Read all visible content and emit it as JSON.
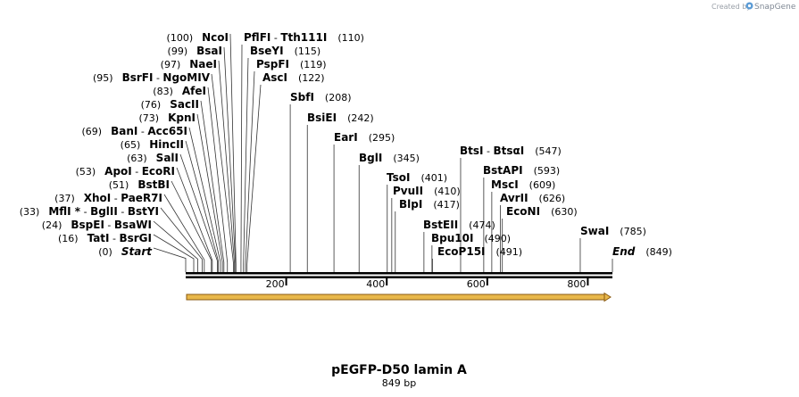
{
  "branding": {
    "created_by": "Created by",
    "app_name": "SnapGene",
    "logo_icon": "snapgene-logo-icon"
  },
  "map": {
    "title": "pEGFP-D50 lamin A",
    "length_label": "849 bp",
    "length_bp": 849,
    "feature_color": "#e8b74a",
    "feature_outline": "#8a5a10",
    "ticks": [
      {
        "bp": 200,
        "label": "200"
      },
      {
        "bp": 400,
        "label": "400"
      },
      {
        "bp": 600,
        "label": "600"
      },
      {
        "bp": 800,
        "label": "800"
      }
    ],
    "sites": [
      {
        "pos_text": "(0)",
        "bp": 0,
        "label_bp": 0,
        "names": [
          "Start"
        ],
        "italic": true,
        "side": "left"
      },
      {
        "pos_text": "(16)",
        "bp": 16,
        "names": [
          "TatI",
          "BsrGI"
        ],
        "side": "left"
      },
      {
        "pos_text": "(24)",
        "bp": 24,
        "names": [
          "BspEI",
          "BsaWI"
        ],
        "side": "left"
      },
      {
        "pos_text": "(33)",
        "bp": 33,
        "names": [
          "MflI *",
          "BglII",
          "BstYI"
        ],
        "side": "left"
      },
      {
        "pos_text": "(37)",
        "bp": 37,
        "names": [
          "XhoI",
          "PaeR7I"
        ],
        "side": "left"
      },
      {
        "pos_text": "(51)",
        "bp": 51,
        "names": [
          "BstBI"
        ],
        "side": "left"
      },
      {
        "pos_text": "(53)",
        "bp": 53,
        "names": [
          "ApoI",
          "EcoRI"
        ],
        "side": "left"
      },
      {
        "pos_text": "(63)",
        "bp": 63,
        "names": [
          "SalI"
        ],
        "side": "left"
      },
      {
        "pos_text": "(65)",
        "bp": 65,
        "names": [
          "HincII"
        ],
        "side": "left"
      },
      {
        "pos_text": "(69)",
        "bp": 69,
        "names": [
          "BanI",
          "Acc65I"
        ],
        "side": "left"
      },
      {
        "pos_text": "(73)",
        "bp": 73,
        "names": [
          "KpnI"
        ],
        "side": "left"
      },
      {
        "pos_text": "(76)",
        "bp": 76,
        "names": [
          "SacII"
        ],
        "side": "left"
      },
      {
        "pos_text": "(83)",
        "bp": 83,
        "names": [
          "AfeI"
        ],
        "side": "left"
      },
      {
        "pos_text": "(95)",
        "bp": 95,
        "names": [
          "BsrFI",
          "NgoMIV"
        ],
        "side": "left"
      },
      {
        "pos_text": "(97)",
        "bp": 97,
        "names": [
          "NaeI"
        ],
        "side": "left"
      },
      {
        "pos_text": "(99)",
        "bp": 99,
        "names": [
          "BsaI"
        ],
        "side": "left"
      },
      {
        "pos_text": "(100)",
        "bp": 100,
        "names": [
          "NcoI"
        ],
        "side": "left"
      },
      {
        "pos_text": "(110)",
        "bp": 110,
        "names": [
          "PflFI",
          "Tth111I"
        ],
        "side": "right"
      },
      {
        "pos_text": "(115)",
        "bp": 115,
        "names": [
          "BseYI"
        ],
        "side": "right"
      },
      {
        "pos_text": "(119)",
        "bp": 119,
        "names": [
          "PspFI"
        ],
        "side": "right"
      },
      {
        "pos_text": "(122)",
        "bp": 122,
        "names": [
          "AscI"
        ],
        "side": "right"
      },
      {
        "pos_text": "(208)",
        "bp": 208,
        "names": [
          "SbfI"
        ],
        "side": "right"
      },
      {
        "pos_text": "(242)",
        "bp": 242,
        "names": [
          "BsiEI"
        ],
        "side": "right"
      },
      {
        "pos_text": "(295)",
        "bp": 295,
        "names": [
          "EarI"
        ],
        "side": "right"
      },
      {
        "pos_text": "(345)",
        "bp": 345,
        "names": [
          "BglI"
        ],
        "side": "right"
      },
      {
        "pos_text": "(401)",
        "bp": 401,
        "names": [
          "TsoI"
        ],
        "side": "right"
      },
      {
        "pos_text": "(410)",
        "bp": 410,
        "names": [
          "PvuII"
        ],
        "side": "right"
      },
      {
        "pos_text": "(417)",
        "bp": 417,
        "names": [
          "BlpI"
        ],
        "side": "right"
      },
      {
        "pos_text": "(474)",
        "bp": 474,
        "names": [
          "BstEII"
        ],
        "side": "right"
      },
      {
        "pos_text": "(490)",
        "bp": 490,
        "names": [
          "Bpu10I"
        ],
        "side": "right"
      },
      {
        "pos_text": "(491)",
        "bp": 491,
        "names": [
          "EcoP15I"
        ],
        "side": "right"
      },
      {
        "pos_text": "(547)",
        "bp": 547,
        "names": [
          "BtsI",
          "BtsαI"
        ],
        "side": "right"
      },
      {
        "pos_text": "(593)",
        "bp": 593,
        "names": [
          "BstAPI"
        ],
        "side": "right"
      },
      {
        "pos_text": "(609)",
        "bp": 609,
        "names": [
          "MscI"
        ],
        "side": "right"
      },
      {
        "pos_text": "(626)",
        "bp": 626,
        "names": [
          "AvrII"
        ],
        "side": "right"
      },
      {
        "pos_text": "(630)",
        "bp": 630,
        "names": [
          "EcoNI"
        ],
        "side": "right"
      },
      {
        "pos_text": "(785)",
        "bp": 785,
        "names": [
          "SwaI"
        ],
        "side": "right"
      },
      {
        "pos_text": "(849)",
        "bp": 849,
        "names": [
          "End"
        ],
        "italic": true,
        "side": "right"
      }
    ]
  }
}
